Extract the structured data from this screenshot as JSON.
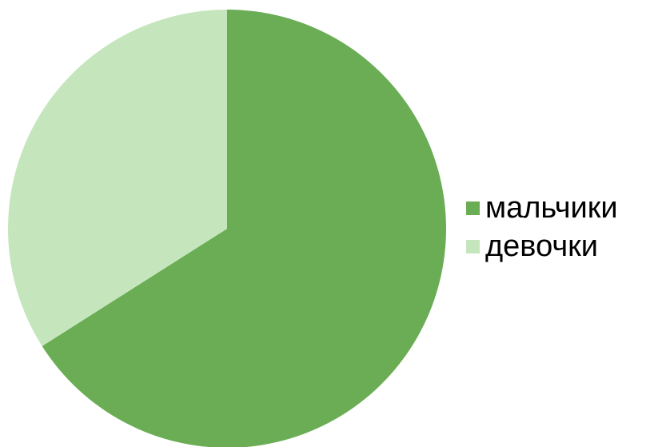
{
  "chart_data": {
    "type": "pie",
    "categories": [
      "мальчики",
      "девочки"
    ],
    "values": [
      66,
      34
    ],
    "colors": [
      "#6aad55",
      "#c5e6bc"
    ],
    "legend_position": "right",
    "start_angle_deg": 0,
    "direction": "clockwise"
  }
}
